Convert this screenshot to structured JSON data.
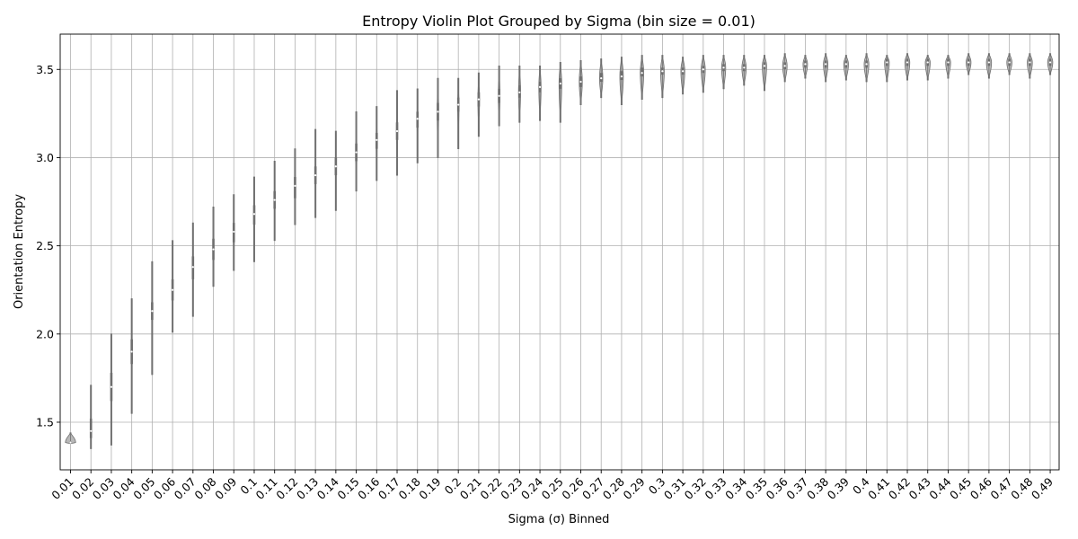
{
  "chart_data": {
    "type": "violin",
    "title": "Entropy Violin Plot Grouped by Sigma (bin size = 0.01)",
    "xlabel": "Sigma (σ) Binned",
    "ylabel": "Orientation Entropy",
    "ylim": [
      1.23,
      3.7
    ],
    "yticks": [
      1.5,
      2.0,
      2.5,
      3.0,
      3.5
    ],
    "ytick_labels": [
      "1.5",
      "2.0",
      "2.5",
      "3.0",
      "3.5"
    ],
    "grid": true,
    "color": "#b8b8b8",
    "categories": [
      "0.01",
      "0.02",
      "0.03",
      "0.04",
      "0.05",
      "0.06",
      "0.07",
      "0.08",
      "0.09",
      "0.1",
      "0.11",
      "0.12",
      "0.13",
      "0.14",
      "0.15",
      "0.16",
      "0.17",
      "0.18",
      "0.19",
      "0.2",
      "0.21",
      "0.22",
      "0.23",
      "0.24",
      "0.25",
      "0.26",
      "0.27",
      "0.28",
      "0.29",
      "0.3",
      "0.31",
      "0.32",
      "0.33",
      "0.34",
      "0.35",
      "0.36",
      "0.37",
      "0.38",
      "0.39",
      "0.4",
      "0.41",
      "0.42",
      "0.43",
      "0.44",
      "0.45",
      "0.46",
      "0.47",
      "0.48",
      "0.49"
    ],
    "min": [
      1.38,
      1.35,
      1.37,
      1.55,
      1.77,
      2.01,
      2.1,
      2.27,
      2.36,
      2.41,
      2.53,
      2.62,
      2.66,
      2.7,
      2.81,
      2.87,
      2.9,
      2.97,
      3.0,
      3.05,
      3.12,
      3.18,
      3.2,
      3.21,
      3.2,
      3.3,
      3.34,
      3.3,
      3.33,
      3.34,
      3.36,
      3.37,
      3.39,
      3.41,
      3.38,
      3.43,
      3.45,
      3.43,
      3.44,
      3.43,
      3.43,
      3.44,
      3.44,
      3.45,
      3.47,
      3.45,
      3.47,
      3.45,
      3.47
    ],
    "max": [
      1.44,
      1.71,
      2.0,
      2.2,
      2.41,
      2.53,
      2.63,
      2.72,
      2.79,
      2.89,
      2.98,
      3.05,
      3.16,
      3.15,
      3.26,
      3.29,
      3.38,
      3.39,
      3.45,
      3.45,
      3.48,
      3.52,
      3.52,
      3.52,
      3.54,
      3.55,
      3.56,
      3.57,
      3.58,
      3.58,
      3.57,
      3.58,
      3.58,
      3.58,
      3.58,
      3.59,
      3.58,
      3.59,
      3.58,
      3.59,
      3.58,
      3.59,
      3.58,
      3.58,
      3.59,
      3.59,
      3.59,
      3.59,
      3.59
    ],
    "median": [
      1.385,
      1.45,
      1.7,
      1.9,
      2.13,
      2.25,
      2.38,
      2.48,
      2.58,
      2.68,
      2.76,
      2.84,
      2.9,
      2.95,
      3.03,
      3.1,
      3.15,
      3.22,
      3.26,
      3.3,
      3.33,
      3.35,
      3.37,
      3.4,
      3.42,
      3.43,
      3.45,
      3.46,
      3.48,
      3.49,
      3.49,
      3.5,
      3.51,
      3.51,
      3.52,
      3.52,
      3.53,
      3.53,
      3.53,
      3.53,
      3.54,
      3.54,
      3.54,
      3.54,
      3.54,
      3.54,
      3.54,
      3.54,
      3.54
    ],
    "q1": [
      1.38,
      1.41,
      1.62,
      1.83,
      2.08,
      2.19,
      2.31,
      2.42,
      2.52,
      2.62,
      2.71,
      2.77,
      2.85,
      2.9,
      2.98,
      3.05,
      3.1,
      3.17,
      3.21,
      3.26,
      3.29,
      3.31,
      3.34,
      3.37,
      3.39,
      3.4,
      3.43,
      3.44,
      3.46,
      3.47,
      3.47,
      3.48,
      3.49,
      3.49,
      3.5,
      3.5,
      3.51,
      3.51,
      3.51,
      3.51,
      3.52,
      3.52,
      3.52,
      3.52,
      3.52,
      3.52,
      3.52,
      3.52,
      3.52
    ],
    "q3": [
      1.39,
      1.52,
      1.78,
      1.97,
      2.18,
      2.31,
      2.44,
      2.54,
      2.63,
      2.73,
      2.81,
      2.89,
      2.95,
      3.0,
      3.08,
      3.14,
      3.2,
      3.26,
      3.31,
      3.34,
      3.37,
      3.39,
      3.41,
      3.43,
      3.45,
      3.46,
      3.48,
      3.49,
      3.51,
      3.51,
      3.51,
      3.52,
      3.53,
      3.53,
      3.54,
      3.54,
      3.55,
      3.55,
      3.55,
      3.55,
      3.56,
      3.56,
      3.56,
      3.56,
      3.56,
      3.56,
      3.56,
      3.56,
      3.56
    ],
    "halfwidth": [
      0.5,
      0.05,
      0.05,
      0.05,
      0.05,
      0.05,
      0.05,
      0.05,
      0.05,
      0.05,
      0.05,
      0.05,
      0.05,
      0.05,
      0.06,
      0.06,
      0.06,
      0.06,
      0.07,
      0.07,
      0.08,
      0.08,
      0.1,
      0.11,
      0.13,
      0.15,
      0.16,
      0.17,
      0.17,
      0.18,
      0.19,
      0.2,
      0.2,
      0.21,
      0.21,
      0.22,
      0.22,
      0.22,
      0.23,
      0.23,
      0.23,
      0.24,
      0.24,
      0.24,
      0.24,
      0.25,
      0.25,
      0.25,
      0.25
    ]
  }
}
